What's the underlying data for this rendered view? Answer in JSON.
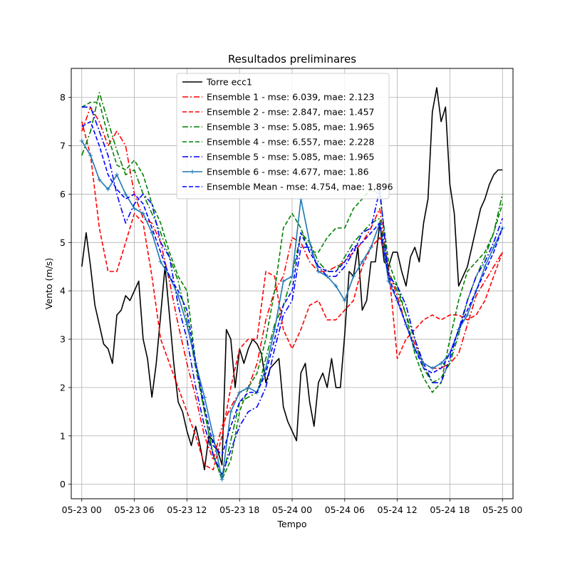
{
  "chart_data": {
    "type": "line",
    "title": "Resultados preliminares",
    "xlabel": "Tempo",
    "ylabel": "Vento (m/s)",
    "xlim": [
      "05-22 22:48",
      "05-25 01:12"
    ],
    "ylim": [
      -0.3,
      8.6
    ],
    "xticks": [
      "05-23 00",
      "05-23 06",
      "05-23 12",
      "05-23 18",
      "05-24 00",
      "05-24 06",
      "05-24 12",
      "05-24 18",
      "05-25 00"
    ],
    "yticks": [
      "0",
      "1",
      "2",
      "3",
      "4",
      "5",
      "6",
      "7",
      "8"
    ],
    "grid": true,
    "legend_position": "top-center",
    "x_unit_note": "hours since 05-23 00",
    "series": [
      {
        "name": "Torre ecc1",
        "color": "#000000",
        "style": "solid",
        "marker": "none",
        "x": [
          0,
          0.5,
          1,
          1.5,
          2,
          2.5,
          3,
          3.5,
          4,
          4.5,
          5,
          5.5,
          6,
          6.5,
          7,
          7.5,
          8,
          8.5,
          9,
          9.5,
          10,
          10.5,
          11,
          11.5,
          12,
          12.5,
          13,
          13.5,
          14,
          14.5,
          15,
          15.5,
          16,
          16.5,
          17,
          17.5,
          18,
          18.5,
          19,
          19.5,
          20,
          20.5,
          21,
          21.5,
          22,
          22.5,
          23,
          23.5,
          24,
          24.5,
          25,
          25.5,
          26,
          26.5,
          27,
          27.5,
          28,
          28.5,
          29,
          29.5,
          30,
          30.5,
          31,
          31.5,
          32,
          32.5,
          33,
          33.5,
          34,
          34.5,
          35,
          35.5,
          36,
          36.5,
          37,
          37.5,
          38,
          38.5,
          39,
          39.5,
          40,
          40.5,
          41,
          41.5,
          42,
          42.5,
          43,
          43.5,
          44,
          44.5,
          45,
          45.5,
          46,
          46.5,
          47,
          47.5,
          48
        ],
        "y": [
          4.5,
          5.2,
          4.5,
          3.7,
          3.3,
          2.9,
          2.8,
          2.5,
          3.5,
          3.6,
          3.9,
          3.8,
          4.0,
          4.2,
          3.0,
          2.6,
          1.8,
          2.5,
          3.5,
          4.5,
          3.5,
          2.5,
          1.7,
          1.5,
          1.1,
          0.8,
          1.2,
          0.8,
          0.3,
          1.0,
          0.9,
          0.7,
          0.4,
          3.2,
          3.0,
          2.0,
          2.8,
          2.5,
          2.8,
          3.0,
          2.9,
          2.7,
          2.1,
          2.4,
          2.5,
          2.6,
          1.6,
          1.3,
          1.1,
          0.9,
          2.3,
          2.5,
          1.7,
          1.2,
          2.1,
          2.3,
          2.0,
          2.6,
          2.0,
          2.0,
          3.1,
          4.4,
          4.3,
          4.9,
          3.6,
          3.8,
          4.6,
          4.6,
          5.4,
          4.6,
          4.5,
          4.8,
          4.8,
          4.4,
          4.1,
          4.7,
          4.9,
          4.6,
          5.4,
          5.9,
          7.7,
          8.2,
          7.5,
          7.8,
          6.2,
          5.6,
          4.1,
          4.3,
          4.5,
          4.9,
          5.3,
          5.7,
          5.9,
          6.2,
          6.4,
          6.5,
          6.5
        ]
      },
      {
        "name": "Ensemble 1 - mse: 6.039, mae: 2.123",
        "color": "#ff0000",
        "style": "dashdot",
        "marker": "none",
        "x": [
          0,
          1,
          2,
          3,
          4,
          5,
          6,
          7,
          8,
          9,
          10,
          11,
          12,
          13,
          14,
          15,
          16,
          17,
          18,
          19,
          20,
          21,
          22,
          23,
          24,
          25,
          26,
          27,
          28,
          29,
          30,
          31,
          32,
          33,
          34,
          35,
          36,
          37,
          38,
          39,
          40,
          41,
          42,
          43,
          44,
          45,
          46,
          47,
          48
        ],
        "y": [
          7.3,
          7.8,
          7.5,
          7.0,
          7.3,
          7.0,
          6.0,
          5.5,
          5.4,
          5.0,
          4.2,
          3.3,
          2.5,
          1.8,
          1.0,
          0.5,
          1.2,
          1.6,
          1.9,
          2.0,
          2.5,
          3.4,
          4.0,
          4.3,
          5.1,
          5.0,
          4.6,
          4.4,
          4.4,
          4.5,
          4.6,
          4.8,
          5.0,
          5.3,
          5.7,
          4.4,
          3.9,
          3.3,
          2.9,
          2.5,
          2.4,
          2.4,
          2.5,
          2.7,
          3.3,
          3.9,
          4.2,
          4.5,
          4.8
        ]
      },
      {
        "name": "Ensemble 2 - mse: 2.847, mae: 1.457",
        "color": "#ff0000",
        "style": "dashed",
        "marker": "none",
        "x": [
          0,
          1,
          2,
          3,
          4,
          5,
          6,
          7,
          8,
          9,
          10,
          11,
          12,
          13,
          14,
          15,
          16,
          17,
          18,
          19,
          20,
          21,
          22,
          23,
          24,
          25,
          26,
          27,
          28,
          29,
          30,
          31,
          32,
          33,
          34,
          35,
          36,
          37,
          38,
          39,
          40,
          41,
          42,
          43,
          44,
          45,
          46,
          47,
          48
        ],
        "y": [
          7.5,
          6.8,
          5.3,
          4.4,
          4.4,
          5.0,
          5.6,
          5.4,
          4.3,
          3.0,
          2.5,
          2.0,
          1.5,
          1.0,
          0.4,
          0.3,
          1.0,
          2.0,
          2.8,
          3.0,
          3.0,
          4.4,
          4.3,
          3.2,
          2.8,
          3.2,
          3.7,
          3.8,
          3.4,
          3.4,
          3.6,
          3.8,
          4.5,
          4.9,
          5.1,
          4.5,
          2.6,
          3.0,
          3.2,
          3.4,
          3.5,
          3.4,
          3.5,
          3.5,
          3.4,
          3.5,
          3.8,
          4.3,
          4.8
        ]
      },
      {
        "name": "Ensemble 3 - mse: 5.085, mae: 1.965",
        "color": "#008000",
        "style": "dashdot",
        "marker": "none",
        "x": [
          0,
          1,
          2,
          3,
          4,
          5,
          6,
          7,
          8,
          9,
          10,
          11,
          12,
          13,
          14,
          15,
          16,
          17,
          18,
          19,
          20,
          21,
          22,
          23,
          24,
          25,
          26,
          27,
          28,
          29,
          30,
          31,
          32,
          33,
          34,
          35,
          36,
          37,
          38,
          39,
          40,
          41,
          42,
          43,
          44,
          45,
          46,
          47,
          48
        ],
        "y": [
          6.8,
          7.3,
          8.1,
          7.5,
          6.9,
          6.4,
          6.5,
          6.0,
          5.6,
          5.2,
          4.7,
          4.2,
          3.4,
          2.4,
          1.5,
          0.6,
          0.1,
          0.9,
          1.7,
          1.8,
          1.9,
          2.6,
          3.3,
          3.7,
          4.3,
          5.2,
          5.0,
          4.6,
          4.4,
          4.4,
          4.7,
          5.0,
          5.2,
          5.4,
          5.5,
          4.4,
          4.0,
          3.5,
          3.0,
          2.4,
          2.1,
          2.2,
          2.5,
          3.1,
          3.8,
          4.3,
          4.7,
          5.2,
          6.0
        ]
      },
      {
        "name": "Ensemble 4 - mse: 6.557, mae: 2.228",
        "color": "#008000",
        "style": "dashed",
        "marker": "none",
        "x": [
          0,
          1,
          2,
          3,
          4,
          5,
          6,
          7,
          8,
          9,
          10,
          11,
          12,
          13,
          14,
          15,
          16,
          17,
          18,
          19,
          20,
          21,
          22,
          23,
          24,
          25,
          26,
          27,
          28,
          29,
          30,
          31,
          32,
          33,
          34,
          35,
          36,
          37,
          38,
          39,
          40,
          41,
          42,
          43,
          44,
          45,
          46,
          47,
          48
        ],
        "y": [
          7.8,
          7.9,
          7.9,
          7.2,
          6.6,
          6.5,
          6.7,
          6.4,
          5.8,
          5.4,
          4.8,
          4.3,
          4.0,
          2.5,
          1.5,
          0.6,
          0.1,
          0.5,
          1.5,
          2.0,
          2.3,
          3.0,
          4.0,
          5.3,
          5.6,
          5.3,
          4.8,
          4.8,
          5.1,
          5.3,
          5.3,
          5.7,
          5.9,
          6.1,
          6.0,
          4.6,
          4.1,
          3.5,
          2.7,
          2.2,
          1.9,
          2.1,
          3.0,
          3.8,
          4.4,
          4.6,
          4.8,
          5.2,
          5.8
        ]
      },
      {
        "name": "Ensemble 5 - mse: 5.085, mae: 1.965",
        "color": "#0000ff",
        "style": "dashdot",
        "marker": "none",
        "x": [
          0,
          1,
          2,
          3,
          4,
          5,
          6,
          7,
          8,
          9,
          10,
          11,
          12,
          13,
          14,
          15,
          16,
          17,
          18,
          19,
          20,
          21,
          22,
          23,
          24,
          25,
          26,
          27,
          28,
          29,
          30,
          31,
          32,
          33,
          34,
          35,
          36,
          37,
          38,
          39,
          40,
          41,
          42,
          43,
          44,
          45,
          46,
          47,
          48
        ],
        "y": [
          7.8,
          7.8,
          7.3,
          6.8,
          6.0,
          5.4,
          5.8,
          6.0,
          5.8,
          5.0,
          4.7,
          3.7,
          3.0,
          2.0,
          1.2,
          0.6,
          0.2,
          0.7,
          1.2,
          1.5,
          1.6,
          2.0,
          2.8,
          3.5,
          3.8,
          4.9,
          4.9,
          4.5,
          4.3,
          4.3,
          4.5,
          4.8,
          5.2,
          5.3,
          6.1,
          4.3,
          4.1,
          3.7,
          3.0,
          2.5,
          2.1,
          2.1,
          2.6,
          3.2,
          3.8,
          4.3,
          4.6,
          5.0,
          5.5
        ]
      },
      {
        "name": "Ensemble 6 - mse: 4.677, mae: 1.86",
        "color": "#1f77b4",
        "style": "solid",
        "marker": "+",
        "x": [
          0,
          1,
          2,
          3,
          4,
          5,
          6,
          7,
          8,
          9,
          10,
          11,
          12,
          13,
          14,
          15,
          16,
          17,
          18,
          19,
          20,
          21,
          22,
          23,
          24,
          25,
          26,
          27,
          28,
          29,
          30,
          31,
          32,
          33,
          34,
          35,
          36,
          37,
          38,
          39,
          40,
          41,
          42,
          43,
          44,
          45,
          46,
          47,
          48
        ],
        "y": [
          7.1,
          6.8,
          6.3,
          6.1,
          6.4,
          6.0,
          5.7,
          5.6,
          5.2,
          4.6,
          4.3,
          3.9,
          3.3,
          2.5,
          1.8,
          1.0,
          0.1,
          1.5,
          1.9,
          2.0,
          1.9,
          2.4,
          3.2,
          4.2,
          4.3,
          5.9,
          5.0,
          4.4,
          4.3,
          4.1,
          3.8,
          4.3,
          4.6,
          4.9,
          5.4,
          4.2,
          3.8,
          3.3,
          2.8,
          2.5,
          2.4,
          2.5,
          2.7,
          3.2,
          3.5,
          4.0,
          4.5,
          4.9,
          5.3
        ]
      },
      {
        "name": "Ensemble Mean - mse: 4.754, mae: 1.896",
        "color": "#0000ff",
        "style": "dashed",
        "marker": "none",
        "x": [
          0,
          1,
          2,
          3,
          4,
          5,
          6,
          7,
          8,
          9,
          10,
          11,
          12,
          13,
          14,
          15,
          16,
          17,
          18,
          19,
          20,
          21,
          22,
          23,
          24,
          25,
          26,
          27,
          28,
          29,
          30,
          31,
          32,
          33,
          34,
          35,
          36,
          37,
          38,
          39,
          40,
          41,
          42,
          43,
          44,
          45,
          46,
          47,
          48
        ],
        "y": [
          7.4,
          7.5,
          7.0,
          6.4,
          6.1,
          5.9,
          6.0,
          5.8,
          5.3,
          4.8,
          4.3,
          4.0,
          3.6,
          2.5,
          1.6,
          0.8,
          0.6,
          1.2,
          1.7,
          1.9,
          1.9,
          2.3,
          3.0,
          3.7,
          4.0,
          5.2,
          4.8,
          4.5,
          4.4,
          4.4,
          4.6,
          4.9,
          5.0,
          5.2,
          5.4,
          4.3,
          3.8,
          3.3,
          2.8,
          2.4,
          2.3,
          2.4,
          2.7,
          3.2,
          3.6,
          4.0,
          4.4,
          4.8,
          5.3
        ]
      }
    ]
  }
}
